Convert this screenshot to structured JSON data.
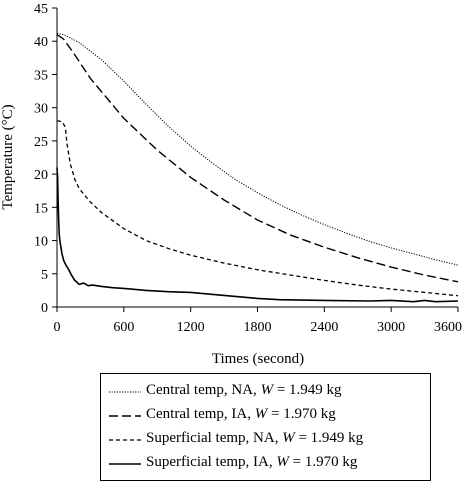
{
  "chart_data": {
    "type": "line",
    "title": "",
    "xlabel": "Times (second)",
    "ylabel": "Temperature (°C)",
    "xlim": [
      0,
      3600
    ],
    "ylim": [
      0,
      45
    ],
    "xticks": [
      "0",
      "600",
      "1200",
      "1800",
      "2400",
      "3000",
      "3600"
    ],
    "yticks": [
      "0",
      "5",
      "10",
      "15",
      "20",
      "25",
      "30",
      "35",
      "40",
      "45"
    ],
    "grid": false,
    "legend_position": "bottom",
    "series": [
      {
        "name": "Central temp, NA, W = 1.949 kg",
        "label_prefix": "Central temp, NA, ",
        "label_var": "W",
        "label_suffix": " = 1.949 kg",
        "style": "dotted",
        "x": [
          0,
          60,
          200,
          400,
          600,
          800,
          1000,
          1200,
          1400,
          1600,
          1800,
          2000,
          2200,
          2400,
          2600,
          2800,
          3000,
          3200,
          3400,
          3600
        ],
        "y": [
          41.2,
          41.0,
          39.8,
          37.2,
          34.0,
          30.5,
          27.2,
          24.2,
          21.6,
          19.2,
          17.2,
          15.4,
          13.8,
          12.4,
          11.1,
          9.9,
          8.9,
          8.0,
          7.1,
          6.3
        ]
      },
      {
        "name": "Central temp, IA, W = 1.970 kg",
        "label_prefix": "Central temp, IA, ",
        "label_var": "W",
        "label_suffix": " = 1.970 kg",
        "style": "dashed",
        "x": [
          0,
          60,
          150,
          300,
          600,
          900,
          1200,
          1500,
          1800,
          2100,
          2400,
          2700,
          3000,
          3300,
          3600
        ],
        "y": [
          41.0,
          40.3,
          38.2,
          34.4,
          28.4,
          23.6,
          19.5,
          16.1,
          13.1,
          10.8,
          9.0,
          7.4,
          6.0,
          4.8,
          3.8
        ]
      },
      {
        "name": "Superficial temp, NA, W = 1.949 kg",
        "label_prefix": "Superficial temp, NA, ",
        "label_var": "W",
        "label_suffix": " = 1.949 kg",
        "style": "short-dashed",
        "x": [
          0,
          20,
          50,
          75,
          90,
          120,
          160,
          200,
          250,
          300,
          400,
          600,
          800,
          1000,
          1200,
          1500,
          1800,
          2100,
          2400,
          2700,
          3000,
          3300,
          3600
        ],
        "y": [
          28.0,
          28.0,
          27.8,
          27.0,
          24.5,
          21.5,
          19.2,
          17.8,
          16.8,
          15.8,
          14.2,
          11.8,
          10.0,
          8.8,
          7.8,
          6.6,
          5.6,
          4.8,
          4.0,
          3.3,
          2.7,
          2.2,
          1.7
        ]
      },
      {
        "name": "Superficial temp, IA, W = 1.970 kg",
        "label_prefix": "Superficial temp, IA, ",
        "label_var": "W",
        "label_suffix": " = 1.970 kg",
        "style": "solid",
        "x": [
          0,
          5,
          10,
          15,
          20,
          30,
          45,
          60,
          80,
          100,
          130,
          160,
          200,
          240,
          280,
          320,
          400,
          500,
          600,
          800,
          1000,
          1200,
          1400,
          1600,
          1800,
          2000,
          2400,
          2800,
          3000,
          3200,
          3300,
          3400,
          3600
        ],
        "y": [
          21.0,
          19.5,
          16.0,
          13.0,
          11.0,
          9.5,
          8.0,
          7.0,
          6.3,
          5.8,
          4.8,
          4.0,
          3.4,
          3.6,
          3.2,
          3.3,
          3.1,
          2.9,
          2.8,
          2.5,
          2.3,
          2.2,
          1.9,
          1.6,
          1.3,
          1.1,
          1.0,
          0.9,
          1.0,
          0.8,
          1.0,
          0.8,
          0.9
        ]
      }
    ]
  }
}
